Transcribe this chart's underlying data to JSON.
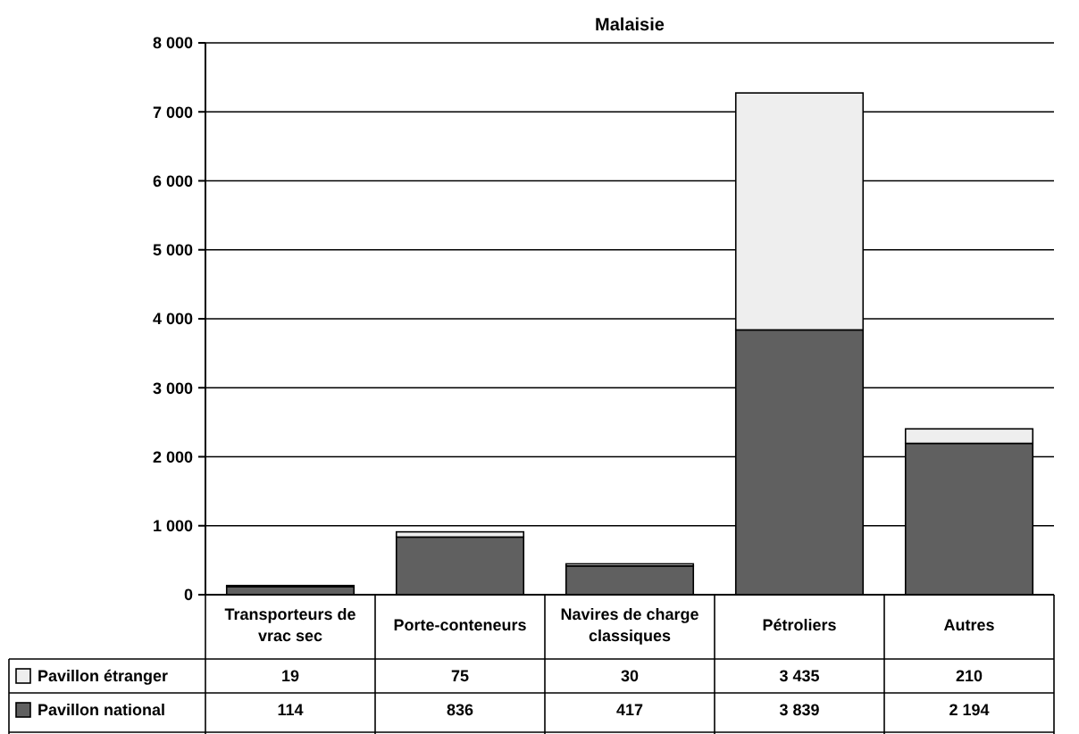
{
  "chart_data": {
    "type": "bar",
    "title": "Malaisie",
    "stacked": true,
    "data_labels": true,
    "grid": "y",
    "legend": "bottom",
    "categories": [
      "Transporteurs de vrac sec",
      "Porte-conteneurs",
      "Navires de charge classiques",
      "Pétroliers",
      "Autres"
    ],
    "series": [
      {
        "name": "Pavillon national",
        "color": "#606060",
        "values": [
          114,
          836,
          417,
          3839,
          2194
        ]
      },
      {
        "name": "Pavillon étranger",
        "color": "#eeeeee",
        "values": [
          19,
          75,
          30,
          3435,
          210
        ]
      }
    ],
    "ylim": [
      0,
      8000
    ],
    "yticks": [
      {
        "value": 0,
        "label": "0"
      },
      {
        "value": 1000,
        "label": "1 000"
      },
      {
        "value": 2000,
        "label": "2 000"
      },
      {
        "value": 3000,
        "label": "3 000"
      },
      {
        "value": 4000,
        "label": "4 000"
      },
      {
        "value": 5000,
        "label": "5 000"
      },
      {
        "value": 6000,
        "label": "6 000"
      },
      {
        "value": 7000,
        "label": "7 000"
      },
      {
        "value": 8000,
        "label": "8 000"
      }
    ]
  }
}
